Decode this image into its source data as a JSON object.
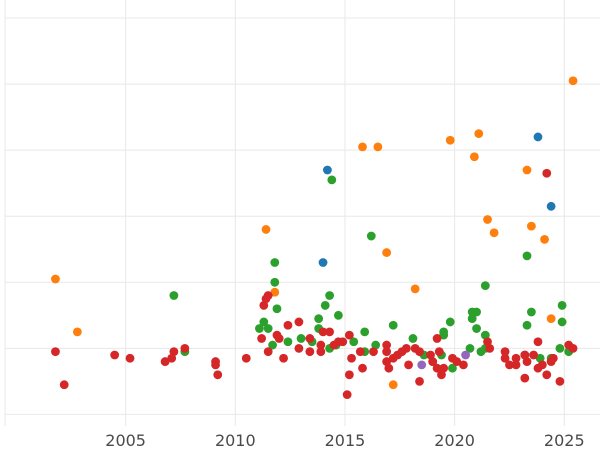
{
  "chart_data": {
    "type": "scatter",
    "title": "",
    "xlabel": "",
    "ylabel": "",
    "xlim": [
      1999.5,
      2026.4
    ],
    "ylim": [
      -3.5,
      120
    ],
    "grid": true,
    "x_ticks": [
      2005,
      2010,
      2015,
      2020,
      2025
    ],
    "x_tick_labels": [
      "2005",
      "2010",
      "2015",
      "2020",
      "2025"
    ],
    "y_gridlines": [
      0,
      20,
      40,
      60,
      80,
      100,
      120
    ],
    "series": [
      {
        "name": "blue",
        "color": "#1f77b4",
        "points": [
          [
            2014.2,
            74
          ],
          [
            2014.0,
            46
          ],
          [
            2023.8,
            84
          ],
          [
            2024.4,
            63
          ]
        ]
      },
      {
        "name": "orange",
        "color": "#ff7f0e",
        "points": [
          [
            2001.8,
            41
          ],
          [
            2002.8,
            25
          ],
          [
            2011.4,
            56
          ],
          [
            2011.8,
            37
          ],
          [
            2015.8,
            81
          ],
          [
            2016.5,
            81
          ],
          [
            2016.9,
            49
          ],
          [
            2017.2,
            9
          ],
          [
            2018.2,
            38
          ],
          [
            2019.8,
            83
          ],
          [
            2020.9,
            78
          ],
          [
            2021.1,
            85
          ],
          [
            2021.5,
            59
          ],
          [
            2021.8,
            55
          ],
          [
            2023.3,
            74
          ],
          [
            2023.5,
            57
          ],
          [
            2024.1,
            53
          ],
          [
            2024.4,
            29
          ],
          [
            2025.4,
            101
          ]
        ]
      },
      {
        "name": "green",
        "color": "#2ca02c",
        "points": [
          [
            2007.2,
            36
          ],
          [
            2007.7,
            19
          ],
          [
            2011.1,
            26
          ],
          [
            2011.3,
            28
          ],
          [
            2011.5,
            26
          ],
          [
            2011.7,
            21
          ],
          [
            2011.8,
            40
          ],
          [
            2011.8,
            46
          ],
          [
            2011.9,
            32
          ],
          [
            2012.4,
            22
          ],
          [
            2013.0,
            23
          ],
          [
            2013.5,
            22
          ],
          [
            2013.8,
            26
          ],
          [
            2013.8,
            29
          ],
          [
            2014.1,
            33
          ],
          [
            2014.3,
            20
          ],
          [
            2014.3,
            36
          ],
          [
            2014.4,
            71
          ],
          [
            2014.6,
            21
          ],
          [
            2014.7,
            30
          ],
          [
            2015.4,
            22
          ],
          [
            2015.9,
            19
          ],
          [
            2015.9,
            25
          ],
          [
            2016.2,
            54
          ],
          [
            2016.4,
            21
          ],
          [
            2017.2,
            27
          ],
          [
            2018.1,
            23
          ],
          [
            2018.6,
            18
          ],
          [
            2019.0,
            16
          ],
          [
            2019.4,
            18
          ],
          [
            2019.5,
            24
          ],
          [
            2019.5,
            25
          ],
          [
            2019.8,
            28
          ],
          [
            2019.9,
            14
          ],
          [
            2020.7,
            20
          ],
          [
            2020.8,
            29
          ],
          [
            2020.8,
            31
          ],
          [
            2021.0,
            26
          ],
          [
            2021.0,
            31
          ],
          [
            2021.2,
            19
          ],
          [
            2021.4,
            20
          ],
          [
            2021.4,
            24
          ],
          [
            2021.4,
            39
          ],
          [
            2023.2,
            18
          ],
          [
            2023.3,
            27
          ],
          [
            2023.3,
            48
          ],
          [
            2023.5,
            31
          ],
          [
            2023.9,
            17
          ],
          [
            2024.4,
            17
          ],
          [
            2024.8,
            20
          ],
          [
            2024.9,
            33
          ],
          [
            2024.9,
            28
          ],
          [
            2025.2,
            19
          ]
        ]
      },
      {
        "name": "red",
        "color": "#d62728",
        "points": [
          [
            2001.8,
            19
          ],
          [
            2002.2,
            9
          ],
          [
            2004.5,
            18
          ],
          [
            2005.2,
            17
          ],
          [
            2006.8,
            16
          ],
          [
            2007.1,
            17
          ],
          [
            2007.2,
            19
          ],
          [
            2007.7,
            20
          ],
          [
            2009.1,
            16
          ],
          [
            2009.1,
            15
          ],
          [
            2009.2,
            12
          ],
          [
            2010.5,
            17
          ],
          [
            2011.2,
            23
          ],
          [
            2011.3,
            33
          ],
          [
            2011.4,
            35
          ],
          [
            2011.5,
            36
          ],
          [
            2011.5,
            19
          ],
          [
            2011.9,
            24
          ],
          [
            2012.0,
            23
          ],
          [
            2012.2,
            17
          ],
          [
            2012.4,
            27
          ],
          [
            2012.9,
            28
          ],
          [
            2012.9,
            20
          ],
          [
            2013.4,
            19
          ],
          [
            2013.4,
            23
          ],
          [
            2013.9,
            19
          ],
          [
            2013.9,
            21
          ],
          [
            2014.0,
            25
          ],
          [
            2014.3,
            25
          ],
          [
            2014.5,
            21
          ],
          [
            2014.7,
            22
          ],
          [
            2014.9,
            22
          ],
          [
            2015.1,
            6
          ],
          [
            2015.2,
            12
          ],
          [
            2015.2,
            24
          ],
          [
            2015.3,
            17
          ],
          [
            2015.7,
            19
          ],
          [
            2015.8,
            14
          ],
          [
            2016.3,
            19
          ],
          [
            2016.9,
            21
          ],
          [
            2016.9,
            19
          ],
          [
            2016.9,
            16
          ],
          [
            2017.0,
            14
          ],
          [
            2017.2,
            17
          ],
          [
            2017.4,
            18
          ],
          [
            2017.6,
            19
          ],
          [
            2017.8,
            20
          ],
          [
            2017.9,
            15
          ],
          [
            2018.2,
            20
          ],
          [
            2018.4,
            19
          ],
          [
            2018.4,
            10
          ],
          [
            2018.9,
            18
          ],
          [
            2019.0,
            16
          ],
          [
            2019.2,
            23
          ],
          [
            2019.2,
            14
          ],
          [
            2019.3,
            19
          ],
          [
            2019.4,
            12
          ],
          [
            2019.5,
            14
          ],
          [
            2019.9,
            17
          ],
          [
            2020.1,
            16
          ],
          [
            2020.4,
            15
          ],
          [
            2021.5,
            22
          ],
          [
            2021.6,
            20
          ],
          [
            2022.3,
            19
          ],
          [
            2022.3,
            17
          ],
          [
            2022.5,
            15
          ],
          [
            2022.8,
            15
          ],
          [
            2022.8,
            17
          ],
          [
            2023.2,
            18
          ],
          [
            2023.2,
            11
          ],
          [
            2023.3,
            16
          ],
          [
            2023.6,
            18
          ],
          [
            2023.8,
            14
          ],
          [
            2023.8,
            22
          ],
          [
            2024.0,
            15
          ],
          [
            2024.2,
            73
          ],
          [
            2024.2,
            12
          ],
          [
            2024.4,
            16
          ],
          [
            2024.5,
            17
          ],
          [
            2024.8,
            10
          ],
          [
            2025.2,
            21
          ],
          [
            2025.4,
            20
          ]
        ]
      },
      {
        "name": "purple",
        "color": "#9467bd",
        "points": [
          [
            2018.5,
            15
          ],
          [
            2020.5,
            18
          ]
        ]
      }
    ]
  }
}
